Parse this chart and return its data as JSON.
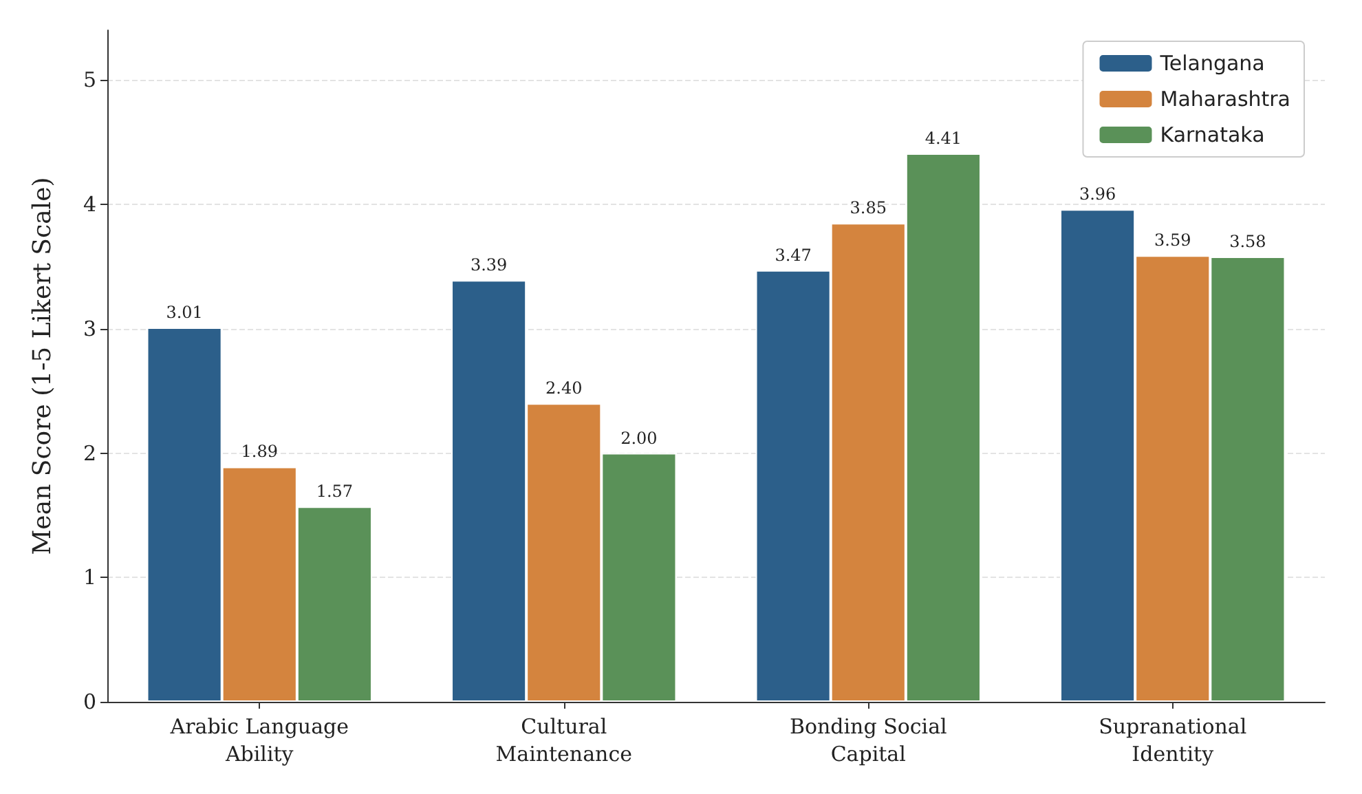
{
  "chart_data": {
    "type": "bar",
    "ylabel": "Mean Score (1-5 Likert Scale)",
    "categories": [
      "Arabic Language\nAbility",
      "Cultural\nMaintenance",
      "Bonding Social\nCapital",
      "Supranational\nIdentity"
    ],
    "series": [
      {
        "name": "Telangana",
        "color": "#2c5f8a",
        "values": [
          3.01,
          3.39,
          3.47,
          3.96
        ],
        "value_labels": [
          "3.01",
          "3.39",
          "3.47",
          "3.96"
        ]
      },
      {
        "name": "Maharashtra",
        "color": "#d4843e",
        "values": [
          1.89,
          2.4,
          3.85,
          3.59
        ],
        "value_labels": [
          "1.89",
          "2.40",
          "3.85",
          "3.59"
        ]
      },
      {
        "name": "Karnataka",
        "color": "#5a9158",
        "values": [
          1.57,
          2.0,
          4.41,
          3.58
        ],
        "value_labels": [
          "1.57",
          "2.00",
          "4.41",
          "3.58"
        ]
      }
    ],
    "ylim": [
      0,
      5.4
    ],
    "yticks": [
      0,
      1,
      2,
      3,
      4,
      5
    ],
    "grid": "y",
    "legend": "top right"
  }
}
